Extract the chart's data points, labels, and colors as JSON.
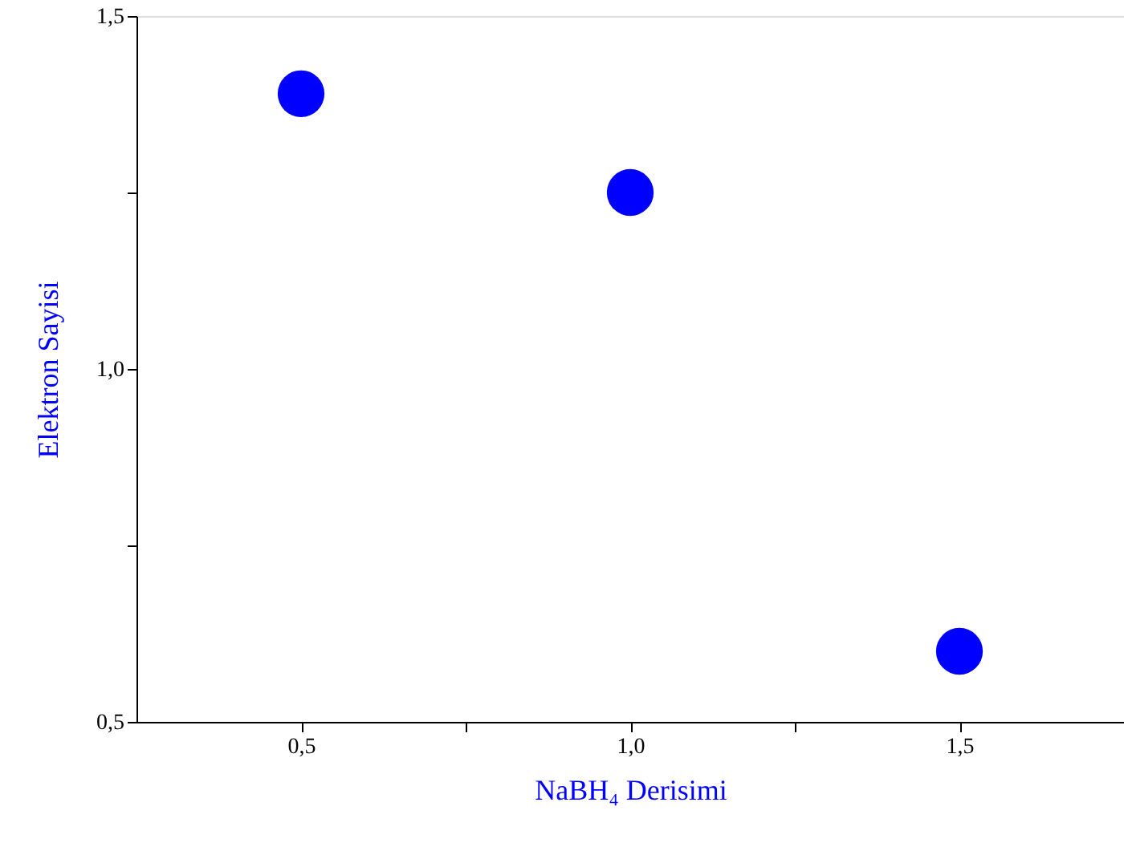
{
  "chart_data": {
    "type": "scatter",
    "xlabel": "NaBH₄ Derisimi",
    "ylabel": "Elektron Sayisi",
    "x": [
      0.5,
      1.0,
      1.5
    ],
    "series": [
      {
        "color": "#0000ff",
        "values": [
          1.39,
          1.25,
          0.6
        ]
      }
    ],
    "xlim": [
      0.25,
      1.75
    ],
    "xticks": [
      {
        "value": 0.5,
        "label": "0,5"
      },
      {
        "value": 0.75,
        "label": null
      },
      {
        "value": 1.0,
        "label": "1,0"
      },
      {
        "value": 1.25,
        "label": null
      },
      {
        "value": 1.5,
        "label": "1,5"
      }
    ],
    "ylim": [
      0.5,
      1.5
    ],
    "yticks": [
      {
        "value": 0.5,
        "label": "0,5"
      },
      {
        "value": 0.75,
        "label": null
      },
      {
        "value": 1.0,
        "label": "1,0"
      },
      {
        "value": 1.25,
        "label": null
      },
      {
        "value": 1.5,
        "label": "1,5"
      }
    ],
    "marker": "circle",
    "grid": false
  }
}
